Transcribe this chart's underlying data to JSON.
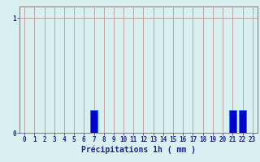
{
  "hours": [
    0,
    1,
    2,
    3,
    4,
    5,
    6,
    7,
    8,
    9,
    10,
    11,
    12,
    13,
    14,
    15,
    16,
    17,
    18,
    19,
    20,
    21,
    22,
    23
  ],
  "values": [
    0,
    0,
    0,
    0,
    0,
    0,
    0,
    0.2,
    0,
    0,
    0,
    0,
    0,
    0,
    0,
    0,
    0,
    0,
    0,
    0,
    0,
    0.2,
    0.2,
    0
  ],
  "bar_color": "#0000cc",
  "bar_edge_color": "#1166ff",
  "background_color": "#d8f0f0",
  "grid_color": "#bb9999",
  "axis_color": "#222288",
  "xlabel": "Précipitations 1h ( mm )",
  "xlabel_fontsize": 7,
  "tick_fontsize": 5.5,
  "ytick_labels": [
    "0",
    "1"
  ],
  "ytick_values": [
    0,
    1
  ],
  "ylim": [
    0,
    1.1
  ],
  "xlim": [
    -0.5,
    23.5
  ]
}
